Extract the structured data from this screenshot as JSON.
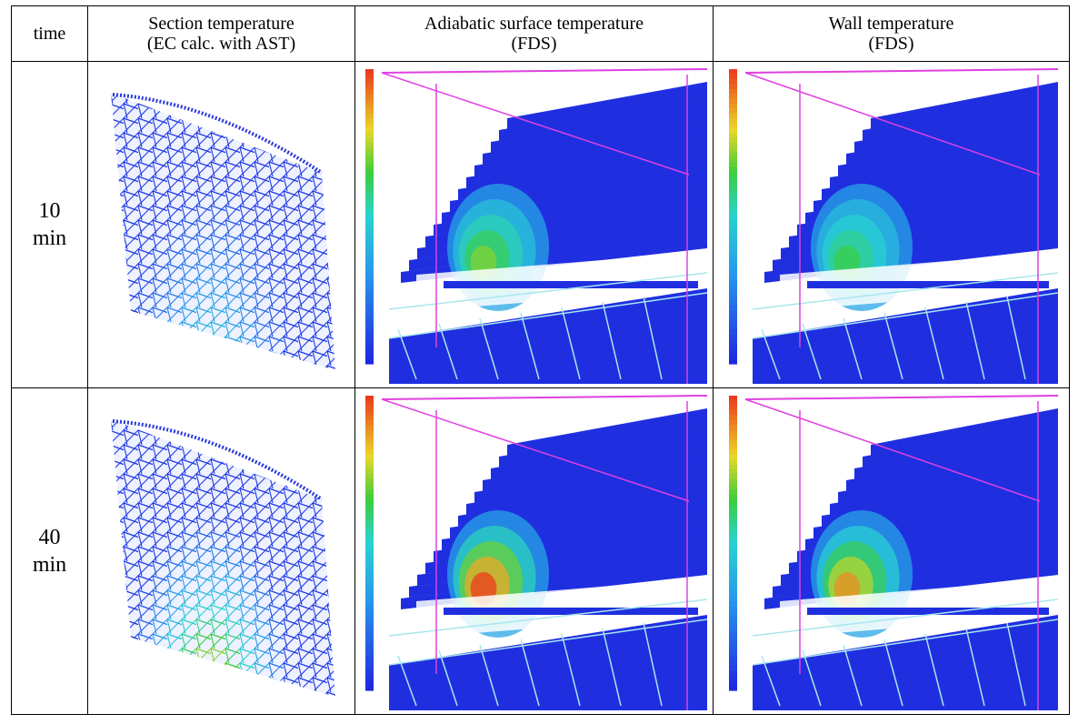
{
  "header": {
    "time": "time",
    "section_line1": "Section temperature",
    "section_line2": "(EC calc. with AST)",
    "adiabatic_line1": "Adiabatic surface temperature",
    "adiabatic_line2": "(FDS)",
    "wall_line1": "Wall temperature",
    "wall_line2": "(FDS)"
  },
  "rows": [
    {
      "time_value": "10",
      "time_unit": "min",
      "heat": 0.45
    },
    {
      "time_value": "40",
      "time_unit": "min",
      "heat": 0.85
    }
  ],
  "colors": {
    "cool": "#1f2fe0",
    "mid": "#29c7e8",
    "warm": "#3cd03c",
    "hot": "#f07a1e",
    "frame": "#e040e0",
    "wire": "#a9e6ef"
  }
}
